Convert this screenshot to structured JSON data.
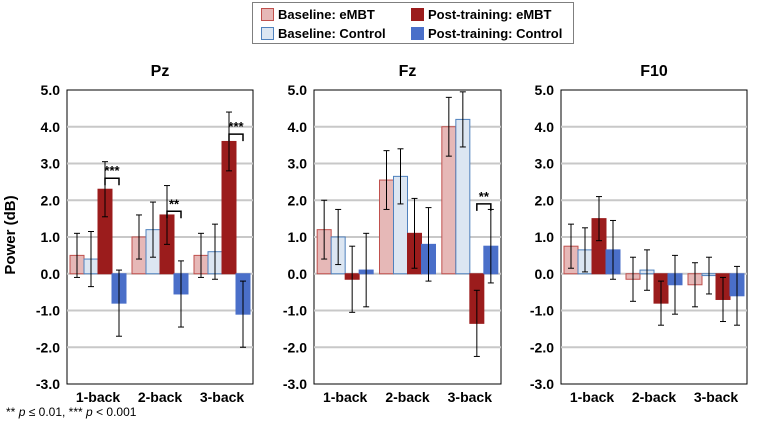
{
  "legend": {
    "baseline_embt": "Baseline: eMBT",
    "baseline_control": "Baseline: Control",
    "post_embt": "Post-training: eMBT",
    "post_control": "Post-training: Control"
  },
  "colors": {
    "baseline_embt": "#e6b8b7",
    "baseline_embt_edge": "#c0504d",
    "baseline_control": "#dce6f2",
    "baseline_control_edge": "#4f81bd",
    "post_embt": "#9b1c1c",
    "post_control": "#4a6fc9",
    "grid": "#c8c8c8"
  },
  "ylabel": "Power (dB)",
  "footnote": {
    "sig2": "**",
    "p1": "p",
    "t1": "≤ 0.01, ",
    "sig3": "***",
    "p2": "p",
    "t2": "<  0.001"
  },
  "chart_data": [
    {
      "type": "bar",
      "title": "Pz",
      "categories": [
        "1-back",
        "2-back",
        "3-back"
      ],
      "ylim": [
        -3.0,
        5.0
      ],
      "yticks": [
        "-3.0",
        "-2.0",
        "-1.0",
        "0.0",
        "1.0",
        "2.0",
        "3.0",
        "4.0",
        "5.0"
      ],
      "grid": true,
      "series": [
        {
          "name": "Baseline: eMBT",
          "values": [
            0.5,
            1.0,
            0.5
          ],
          "errors": [
            0.6,
            0.6,
            0.6
          ]
        },
        {
          "name": "Baseline: Control",
          "values": [
            0.4,
            1.2,
            0.6
          ],
          "errors": [
            0.75,
            0.75,
            0.75
          ]
        },
        {
          "name": "Post-training: eMBT",
          "values": [
            2.3,
            1.6,
            3.6
          ],
          "errors": [
            0.75,
            0.8,
            0.8
          ]
        },
        {
          "name": "Post-training: Control",
          "values": [
            -0.8,
            -0.55,
            -1.1
          ],
          "errors": [
            0.9,
            0.9,
            0.9
          ]
        }
      ],
      "annotations": [
        {
          "category": "1-back",
          "text": "***",
          "y": 2.6
        },
        {
          "category": "2-back",
          "text": "**",
          "y": 1.7
        },
        {
          "category": "3-back",
          "text": "***",
          "y": 3.8
        }
      ]
    },
    {
      "type": "bar",
      "title": "Fz",
      "categories": [
        "1-back",
        "2-back",
        "3-back"
      ],
      "ylim": [
        -3.0,
        5.0
      ],
      "yticks": [
        "-3.0",
        "-2.0",
        "-1.0",
        "0.0",
        "1.0",
        "2.0",
        "3.0",
        "4.0",
        "5.0"
      ],
      "grid": true,
      "series": [
        {
          "name": "Baseline: eMBT",
          "values": [
            1.2,
            2.55,
            4.0
          ],
          "errors": [
            0.8,
            0.8,
            0.8
          ]
        },
        {
          "name": "Baseline: Control",
          "values": [
            1.0,
            2.65,
            4.2
          ],
          "errors": [
            0.75,
            0.75,
            0.75
          ]
        },
        {
          "name": "Post-training: eMBT",
          "values": [
            -0.15,
            1.1,
            -1.35
          ],
          "errors": [
            0.9,
            0.95,
            0.9
          ]
        },
        {
          "name": "Post-training: Control",
          "values": [
            0.1,
            0.8,
            0.75
          ],
          "errors": [
            1.0,
            1.0,
            1.0
          ]
        }
      ],
      "annotations": [
        {
          "category": "3-back",
          "text": "**",
          "y": 1.9
        }
      ]
    },
    {
      "type": "bar",
      "title": "F10",
      "categories": [
        "1-back",
        "2-back",
        "3-back"
      ],
      "ylim": [
        -3.0,
        5.0
      ],
      "yticks": [
        "-3.0",
        "-2.0",
        "-1.0",
        "0.0",
        "1.0",
        "2.0",
        "3.0",
        "4.0",
        "5.0"
      ],
      "grid": true,
      "series": [
        {
          "name": "Baseline: eMBT",
          "values": [
            0.75,
            -0.15,
            -0.3
          ],
          "errors": [
            0.6,
            0.6,
            0.6
          ]
        },
        {
          "name": "Baseline: Control",
          "values": [
            0.65,
            0.1,
            -0.05
          ],
          "errors": [
            0.6,
            0.55,
            0.5
          ]
        },
        {
          "name": "Post-training: eMBT",
          "values": [
            1.5,
            -0.8,
            -0.7
          ],
          "errors": [
            0.6,
            0.6,
            0.6
          ]
        },
        {
          "name": "Post-training: Control",
          "values": [
            0.65,
            -0.3,
            -0.6
          ],
          "errors": [
            0.8,
            0.8,
            0.8
          ]
        }
      ],
      "annotations": []
    }
  ]
}
